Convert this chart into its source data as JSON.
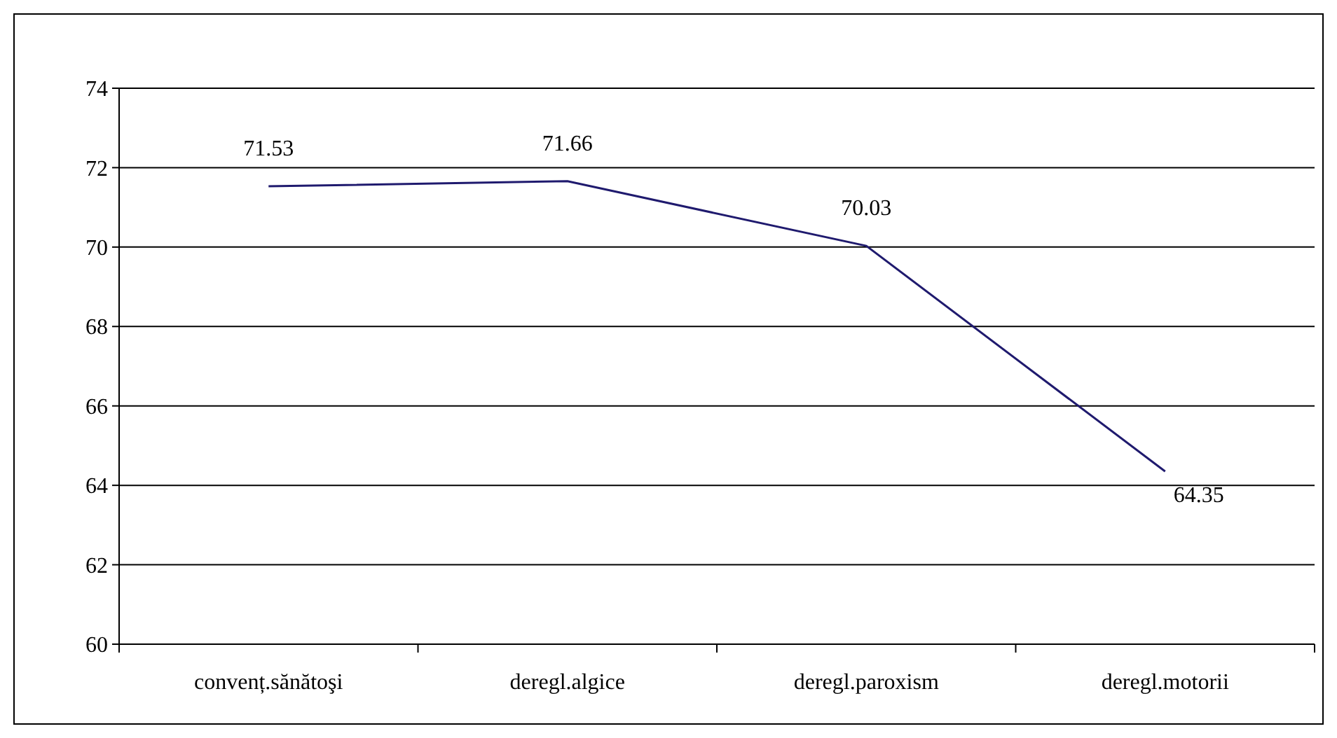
{
  "chart_data": {
    "type": "line",
    "categories": [
      "convenț.sănătoşi",
      "deregl.algice",
      "deregl.paroxism",
      "deregl.motorii"
    ],
    "values": [
      71.53,
      71.66,
      70.03,
      64.35
    ],
    "color": "#1f1a6e",
    "ylim": [
      60,
      74
    ],
    "yticks": [
      60,
      62,
      64,
      66,
      68,
      70,
      72,
      74
    ],
    "grid": "y",
    "data_labels": true
  }
}
